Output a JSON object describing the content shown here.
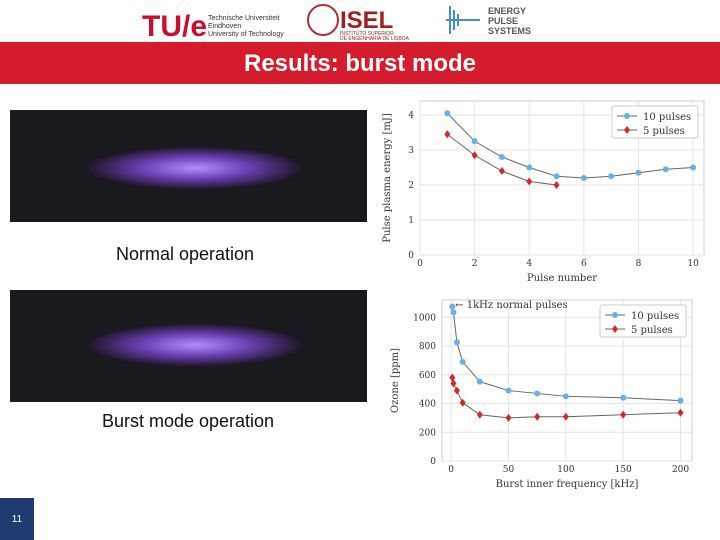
{
  "header": {
    "logo1_mark": "TU/e",
    "logo1_text": [
      "Technische Universiteit",
      "Eindhoven",
      "University of Technology"
    ],
    "logo2_mark": "ISEL",
    "logo2_text": [
      "INSTITUTO SUPERIOR",
      "DE ENGENHARIA DE LISBOA"
    ],
    "logo3_text": [
      "ENERGY",
      "PULSE",
      "SYSTEMS"
    ]
  },
  "title": "Results: burst mode",
  "captions": [
    "Normal operation",
    "Burst mode operation"
  ],
  "slide_number": "11",
  "chart_data": [
    {
      "type": "line",
      "xlabel": "Pulse number",
      "ylabel": "Pulse plasma energy [mJ]",
      "xlim": [
        0,
        10.4
      ],
      "xticks": [
        0,
        2,
        4,
        6,
        8,
        10
      ],
      "ylim": [
        0,
        4.4
      ],
      "yticks": [
        0,
        1,
        2,
        3,
        4
      ],
      "grid": true,
      "legend": "upper right",
      "series": [
        {
          "name": "10 pulses",
          "color": "#6aaee8",
          "marker": "circle",
          "x": [
            1,
            2,
            3,
            4,
            5,
            6,
            7,
            8,
            9,
            10
          ],
          "values": [
            4.05,
            3.25,
            2.8,
            2.5,
            2.25,
            2.2,
            2.25,
            2.35,
            2.45,
            2.5
          ]
        },
        {
          "name": "5 pulses",
          "color": "#d62728",
          "marker": "diamond",
          "x": [
            1,
            2,
            3,
            4,
            5
          ],
          "values": [
            3.45,
            2.85,
            2.4,
            2.1,
            2.0
          ]
        }
      ]
    },
    {
      "type": "line",
      "xlabel": "Burst inner frequency [kHz]",
      "ylabel": "Ozone [ppm]",
      "annotation": "← 1kHz normal pulses",
      "xlim": [
        -8,
        210
      ],
      "xticks": [
        0,
        50,
        100,
        150,
        200
      ],
      "ylim": [
        0,
        1120
      ],
      "yticks": [
        0,
        200,
        400,
        600,
        800,
        1000
      ],
      "grid": true,
      "legend": "upper right",
      "series": [
        {
          "name": "10 pulses",
          "color": "#6aaee8",
          "marker": "circle",
          "x": [
            1,
            2,
            5,
            10,
            25,
            50,
            75,
            100,
            150,
            200
          ],
          "values": [
            1075,
            1035,
            825,
            690,
            552,
            490,
            470,
            450,
            440,
            420
          ]
        },
        {
          "name": "5 pulses",
          "color": "#d62728",
          "marker": "diamond",
          "x": [
            1,
            2,
            5,
            10,
            25,
            50,
            75,
            100,
            150,
            200
          ],
          "values": [
            580,
            540,
            490,
            405,
            322,
            300,
            308,
            308,
            322,
            336
          ]
        }
      ]
    }
  ]
}
